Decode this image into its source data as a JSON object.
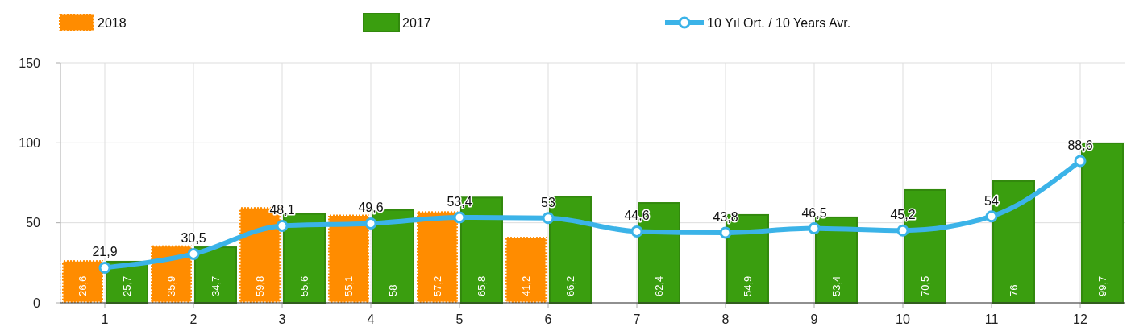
{
  "chart_data": {
    "type": "bar",
    "categories": [
      "1",
      "2",
      "3",
      "4",
      "5",
      "6",
      "7",
      "8",
      "9",
      "10",
      "11",
      "12"
    ],
    "series": [
      {
        "name": "2018",
        "color": "#ff8c00",
        "values": [
          26.6,
          35.9,
          59.8,
          55.1,
          57.2,
          41.2,
          0,
          0,
          0,
          0,
          0,
          0
        ],
        "value_labels": [
          "26,6",
          "35,9",
          "59,8",
          "55,1",
          "57,2",
          "41,2",
          null,
          null,
          null,
          null,
          null,
          null
        ]
      },
      {
        "name": "2017",
        "color": "#3a9e0f",
        "values": [
          25.7,
          34.7,
          55.6,
          58,
          65.8,
          66.2,
          62.4,
          54.9,
          53.4,
          70.5,
          76,
          99.7
        ],
        "value_labels": [
          "25,7",
          "34,7",
          "55,6",
          "58",
          "65,8",
          "66,2",
          "62,4",
          "54,9",
          "53,4",
          "70,5",
          "76",
          "99,7"
        ]
      },
      {
        "name": "10 Yıl Ort. / 10 Years Avr.",
        "type": "line",
        "color": "#3bb3e8",
        "values": [
          21.9,
          30.5,
          48.1,
          49.6,
          53.4,
          53,
          44.6,
          43.8,
          46.5,
          45.2,
          54,
          88.6
        ],
        "value_labels": [
          "21,9",
          "30,5",
          "48,1",
          "49,6",
          "53,4",
          "53",
          "44,6",
          "43,8",
          "46,5",
          "45,2",
          "54",
          "88,6"
        ]
      }
    ],
    "ylim": [
      0,
      150
    ],
    "yticks": [
      0,
      50,
      100,
      150
    ],
    "grid": true,
    "legend": "top",
    "marker": "circle"
  }
}
